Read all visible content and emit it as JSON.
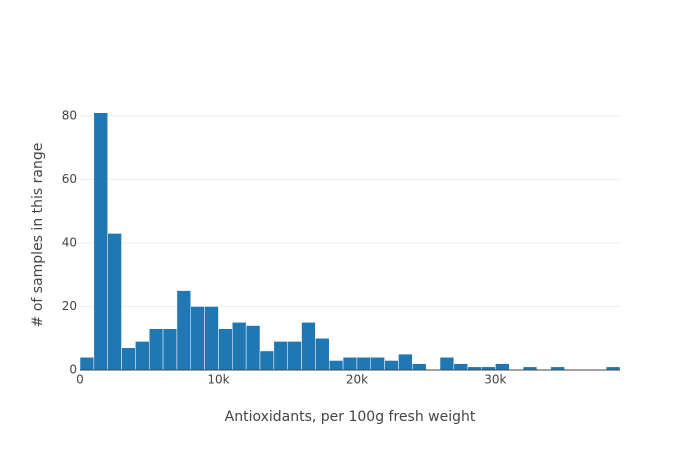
{
  "chart_data": {
    "type": "histogram",
    "xlabel": "Antioxidants, per 100g fresh weight",
    "ylabel": "# of samples in this range",
    "bins": [
      0,
      1000,
      2000,
      3000,
      4000,
      5000,
      6000,
      7000,
      8000,
      9000,
      10000,
      11000,
      12000,
      13000,
      14000,
      15000,
      16000,
      17000,
      18000,
      19000,
      20000,
      21000,
      22000,
      23000,
      24000,
      25000,
      26000,
      27000,
      28000,
      29000,
      30000,
      31000,
      32000,
      33000,
      34000,
      35000,
      36000,
      37000,
      38000,
      39000
    ],
    "counts": [
      4,
      81,
      43,
      7,
      9,
      13,
      13,
      25,
      20,
      20,
      13,
      15,
      14,
      6,
      9,
      9,
      15,
      10,
      3,
      4,
      4,
      4,
      3,
      5,
      2,
      0,
      4,
      2,
      1,
      1,
      2,
      0,
      1,
      0,
      1,
      0,
      0,
      0,
      1
    ],
    "color": "#1f77b4",
    "xlim": [
      0,
      39000
    ],
    "xticks": [
      0,
      {
        "value": 10000,
        "label": "10k"
      },
      {
        "value": 20000,
        "label": "20k"
      },
      {
        "value": 30000,
        "label": "30k"
      }
    ],
    "ylim": [
      0,
      85
    ],
    "yticks": [
      0,
      20,
      40,
      60,
      80
    ],
    "grid": true
  }
}
